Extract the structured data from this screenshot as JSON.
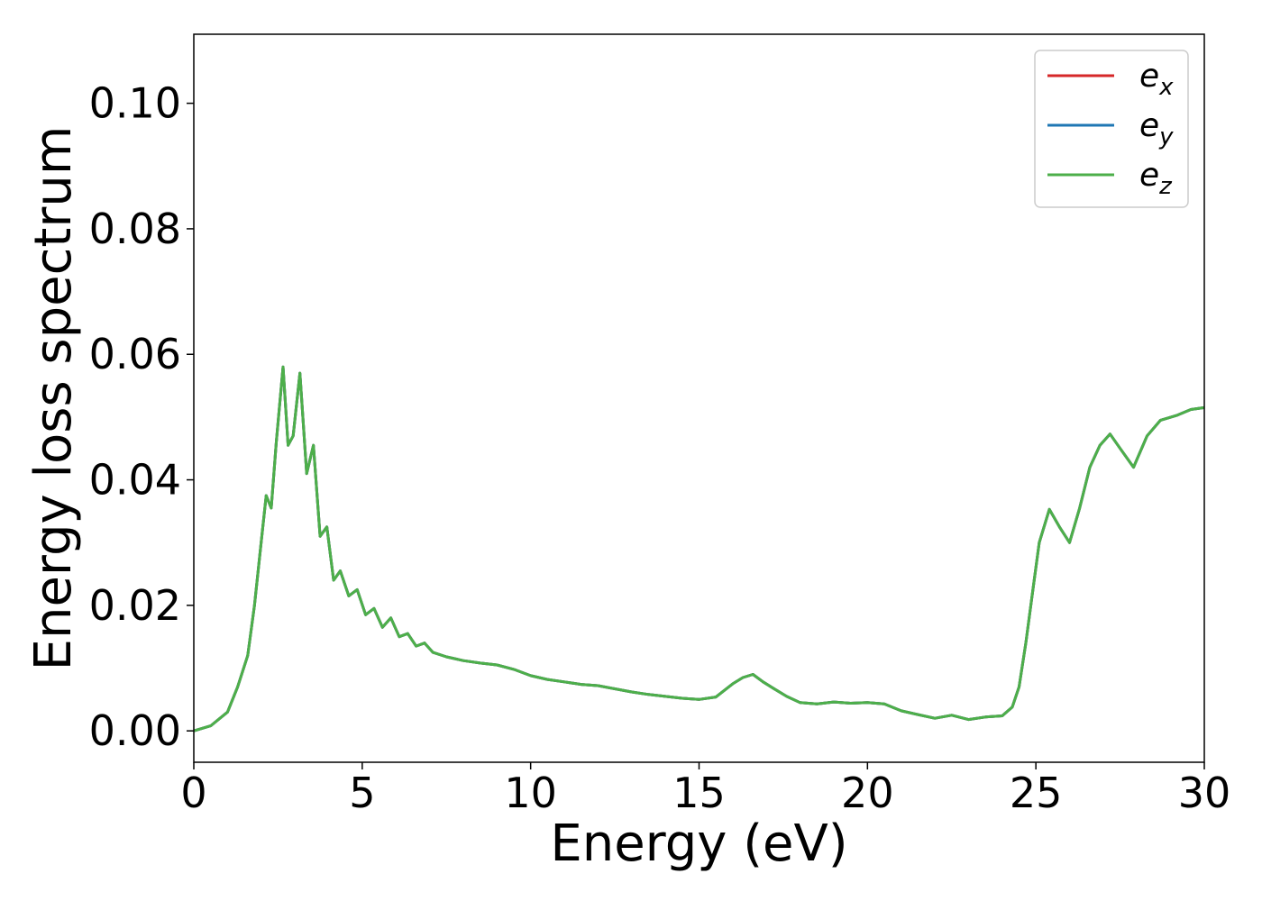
{
  "chart_data": {
    "type": "line",
    "title": "",
    "xlabel": "Energy (eV)",
    "ylabel": "Energy loss spectrum",
    "xlim": [
      0,
      30
    ],
    "ylim": [
      -0.005,
      0.111
    ],
    "xticks": [
      0,
      5,
      10,
      15,
      20,
      25,
      30
    ],
    "yticks": [
      0.0,
      0.02,
      0.04,
      0.06,
      0.08,
      0.1
    ],
    "xtick_labels": [
      "0",
      "5",
      "10",
      "15",
      "20",
      "25",
      "30"
    ],
    "ytick_labels": [
      "0.00",
      "0.02",
      "0.04",
      "0.06",
      "0.08",
      "0.10"
    ],
    "grid": false,
    "legend_position": "top-right",
    "series": [
      {
        "name": "e",
        "subscript": "x",
        "color": "#d62728",
        "x": [
          0,
          0.5,
          1,
          1.3,
          1.6,
          1.8,
          2,
          2.15,
          2.3,
          2.45,
          2.65,
          2.8,
          2.95,
          3.15,
          3.35,
          3.55,
          3.75,
          3.95,
          4.15,
          4.35,
          4.6,
          4.85,
          5.1,
          5.35,
          5.6,
          5.85,
          6.1,
          6.35,
          6.6,
          6.85,
          7.1,
          7.5,
          8,
          8.5,
          9,
          9.5,
          10,
          10.5,
          11,
          11.5,
          12,
          12.5,
          13,
          13.5,
          14,
          14.5,
          15,
          15.5,
          16,
          16.3,
          16.6,
          16.9,
          17.2,
          17.6,
          18,
          18.5,
          19,
          19.5,
          20,
          20.5,
          21,
          21.5,
          22,
          22.5,
          23,
          23.5,
          24,
          24.3,
          24.5,
          24.7,
          24.9,
          25.1,
          25.4,
          25.7,
          26,
          26.3,
          26.6,
          26.9,
          27.2,
          27.5,
          27.9,
          28.3,
          28.7,
          29.2,
          29.6,
          30
        ],
        "y": [
          0,
          0.0008,
          0.003,
          0.007,
          0.012,
          0.02,
          0.03,
          0.0375,
          0.0355,
          0.046,
          0.058,
          0.0455,
          0.047,
          0.057,
          0.041,
          0.0455,
          0.031,
          0.0325,
          0.024,
          0.0255,
          0.0215,
          0.0225,
          0.0185,
          0.0195,
          0.0165,
          0.018,
          0.015,
          0.0155,
          0.0135,
          0.014,
          0.0125,
          0.0118,
          0.0112,
          0.0108,
          0.0105,
          0.0098,
          0.0088,
          0.0082,
          0.0078,
          0.0074,
          0.0072,
          0.0067,
          0.0062,
          0.0058,
          0.0055,
          0.0052,
          0.005,
          0.0054,
          0.0075,
          0.0085,
          0.009,
          0.0078,
          0.0068,
          0.0055,
          0.0045,
          0.0043,
          0.0046,
          0.0044,
          0.0045,
          0.0043,
          0.0032,
          0.0026,
          0.002,
          0.0025,
          0.0018,
          0.0022,
          0.0024,
          0.0038,
          0.007,
          0.014,
          0.022,
          0.03,
          0.0353,
          0.0325,
          0.03,
          0.0355,
          0.042,
          0.0455,
          0.0473,
          0.045,
          0.042,
          0.047,
          0.0495,
          0.0503,
          0.0512,
          0.0515
        ]
      },
      {
        "name": "e",
        "subscript": "y",
        "color": "#1f77b4",
        "x": [
          0,
          0.5,
          1,
          1.3,
          1.6,
          1.8,
          2,
          2.15,
          2.3,
          2.45,
          2.65,
          2.8,
          2.95,
          3.15,
          3.35,
          3.55,
          3.75,
          3.95,
          4.15,
          4.35,
          4.6,
          4.85,
          5.1,
          5.35,
          5.6,
          5.85,
          6.1,
          6.35,
          6.6,
          6.85,
          7.1,
          7.5,
          8,
          8.5,
          9,
          9.5,
          10,
          10.5,
          11,
          11.5,
          12,
          12.5,
          13,
          13.5,
          14,
          14.5,
          15,
          15.5,
          16,
          16.3,
          16.6,
          16.9,
          17.2,
          17.6,
          18,
          18.5,
          19,
          19.5,
          20,
          20.5,
          21,
          21.5,
          22,
          22.5,
          23,
          23.5,
          24,
          24.3,
          24.5,
          24.7,
          24.9,
          25.1,
          25.4,
          25.7,
          26,
          26.3,
          26.6,
          26.9,
          27.2,
          27.5,
          27.9,
          28.3,
          28.7,
          29.2,
          29.6,
          30
        ],
        "y": [
          0,
          0.0008,
          0.003,
          0.007,
          0.012,
          0.02,
          0.03,
          0.0375,
          0.0355,
          0.046,
          0.058,
          0.0455,
          0.047,
          0.057,
          0.041,
          0.0455,
          0.031,
          0.0325,
          0.024,
          0.0255,
          0.0215,
          0.0225,
          0.0185,
          0.0195,
          0.0165,
          0.018,
          0.015,
          0.0155,
          0.0135,
          0.014,
          0.0125,
          0.0118,
          0.0112,
          0.0108,
          0.0105,
          0.0098,
          0.0088,
          0.0082,
          0.0078,
          0.0074,
          0.0072,
          0.0067,
          0.0062,
          0.0058,
          0.0055,
          0.0052,
          0.005,
          0.0054,
          0.0075,
          0.0085,
          0.009,
          0.0078,
          0.0068,
          0.0055,
          0.0045,
          0.0043,
          0.0046,
          0.0044,
          0.0045,
          0.0043,
          0.0032,
          0.0026,
          0.002,
          0.0025,
          0.0018,
          0.0022,
          0.0024,
          0.0038,
          0.007,
          0.014,
          0.022,
          0.03,
          0.0353,
          0.0325,
          0.03,
          0.0355,
          0.042,
          0.0455,
          0.0473,
          0.045,
          0.042,
          0.047,
          0.0495,
          0.0503,
          0.0512,
          0.0515
        ]
      },
      {
        "name": "e",
        "subscript": "z",
        "color": "#4daf4a",
        "x": [
          0,
          0.5,
          1,
          1.3,
          1.6,
          1.8,
          2,
          2.15,
          2.3,
          2.45,
          2.65,
          2.8,
          2.95,
          3.15,
          3.35,
          3.55,
          3.75,
          3.95,
          4.15,
          4.35,
          4.6,
          4.85,
          5.1,
          5.35,
          5.6,
          5.85,
          6.1,
          6.35,
          6.6,
          6.85,
          7.1,
          7.5,
          8,
          8.5,
          9,
          9.5,
          10,
          10.5,
          11,
          11.5,
          12,
          12.5,
          13,
          13.5,
          14,
          14.5,
          15,
          15.5,
          16,
          16.3,
          16.6,
          16.9,
          17.2,
          17.6,
          18,
          18.5,
          19,
          19.5,
          20,
          20.5,
          21,
          21.5,
          22,
          22.5,
          23,
          23.5,
          24,
          24.3,
          24.5,
          24.7,
          24.9,
          25.1,
          25.4,
          25.7,
          26,
          26.3,
          26.6,
          26.9,
          27.2,
          27.5,
          27.9,
          28.3,
          28.7,
          29.2,
          29.6,
          30
        ],
        "y": [
          0,
          0.0008,
          0.003,
          0.007,
          0.012,
          0.02,
          0.03,
          0.0375,
          0.0355,
          0.046,
          0.058,
          0.0455,
          0.047,
          0.057,
          0.041,
          0.0455,
          0.031,
          0.0325,
          0.024,
          0.0255,
          0.0215,
          0.0225,
          0.0185,
          0.0195,
          0.0165,
          0.018,
          0.015,
          0.0155,
          0.0135,
          0.014,
          0.0125,
          0.0118,
          0.0112,
          0.0108,
          0.0105,
          0.0098,
          0.0088,
          0.0082,
          0.0078,
          0.0074,
          0.0072,
          0.0067,
          0.0062,
          0.0058,
          0.0055,
          0.0052,
          0.005,
          0.0054,
          0.0075,
          0.0085,
          0.009,
          0.0078,
          0.0068,
          0.0055,
          0.0045,
          0.0043,
          0.0046,
          0.0044,
          0.0045,
          0.0043,
          0.0032,
          0.0026,
          0.002,
          0.0025,
          0.0018,
          0.0022,
          0.0024,
          0.0038,
          0.007,
          0.014,
          0.022,
          0.03,
          0.0353,
          0.0325,
          0.03,
          0.0355,
          0.042,
          0.0455,
          0.0473,
          0.045,
          0.042,
          0.047,
          0.0495,
          0.0503,
          0.0512,
          0.0515
        ]
      }
    ]
  }
}
